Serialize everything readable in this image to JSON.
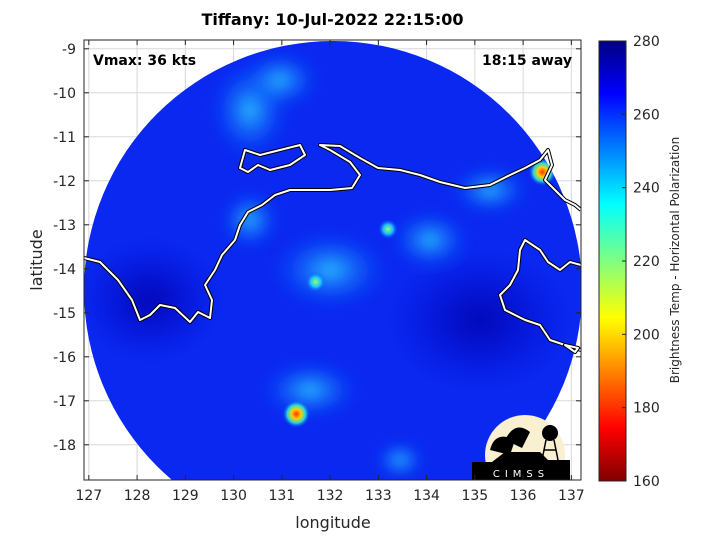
{
  "chart_data": {
    "type": "heatmap",
    "title": "Tiffany: 10-Jul-2022 22:15:00",
    "xlabel": "longitude",
    "ylabel": "latitude",
    "xlim": [
      126.9,
      137.2
    ],
    "ylim": [
      -18.8,
      -8.8
    ],
    "xticks": [
      127,
      128,
      129,
      130,
      131,
      132,
      133,
      134,
      135,
      136,
      137
    ],
    "yticks": [
      -9,
      -10,
      -11,
      -12,
      -13,
      -14,
      -15,
      -16,
      -17,
      -18
    ],
    "grid": true,
    "annotations": {
      "vmax": "Vmax: 36 kts",
      "away": "18:15 away"
    },
    "colorbar": {
      "label": "Brightness Temp - Horizontal Polarization",
      "range": [
        160,
        280
      ],
      "ticks": [
        160,
        180,
        200,
        220,
        240,
        260,
        280
      ],
      "colormap": "jet",
      "position": "right"
    },
    "cold_spots": [
      {
        "lon": 131.3,
        "lat": -17.3,
        "value": 185
      },
      {
        "lon": 136.4,
        "lat": -11.8,
        "value": 190
      },
      {
        "lon": 131.7,
        "lat": -14.3,
        "value": 215
      },
      {
        "lon": 133.2,
        "lat": -13.1,
        "value": 225
      }
    ],
    "background_value": 268
  },
  "logo": {
    "text": "CIMSS"
  }
}
